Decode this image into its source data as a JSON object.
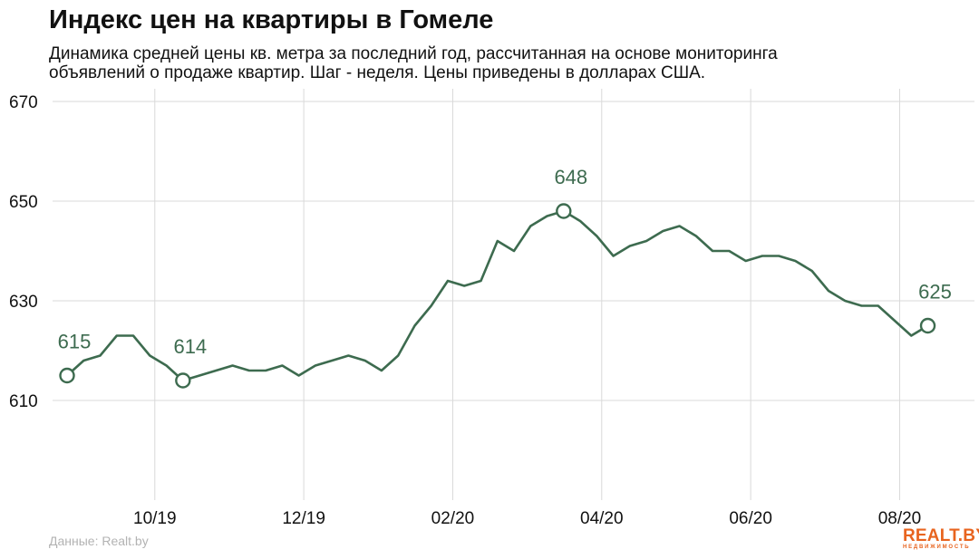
{
  "title": "Индекс цен на квартиры в Гомеле",
  "subtitle_line1": "Динамика средней цены кв. метра за последний год, рассчитанная на основе мониторинга",
  "subtitle_line2": "объявлений о продаже квартир. Шаг - неделя. Цены приведены в долларах США.",
  "source": "Данные: Realt.by",
  "logo": {
    "text": "REALT.BY",
    "sub": "НЕДВИЖИМОСТЬ"
  },
  "colors": {
    "line": "#3d6b4f",
    "grid": "#d9d9d9",
    "text": "#111111",
    "source": "#b3b3b3",
    "logo": "#e8641f"
  },
  "chart_data": {
    "type": "line",
    "title": "Индекс цен на квартиры в Гомеле",
    "xlabel": "",
    "ylabel": "",
    "ylim": [
      590,
      670
    ],
    "y_ticks": [
      610,
      630,
      650,
      670
    ],
    "x_ticks": [
      "10/19",
      "12/19",
      "02/20",
      "04/20",
      "06/20",
      "08/20"
    ],
    "x_tick_weeks": [
      5.3,
      14.3,
      23.3,
      32.3,
      41.3,
      50.3
    ],
    "grid": true,
    "series": [
      {
        "values": [
          615,
          618,
          619,
          623,
          623,
          619,
          617,
          614,
          615,
          616,
          617,
          616,
          616,
          617,
          615,
          617,
          618,
          619,
          618,
          616,
          619,
          625,
          629,
          634,
          633,
          634,
          642,
          640,
          645,
          647,
          648,
          646,
          643,
          639,
          641,
          642,
          644,
          645,
          643,
          640,
          640,
          638,
          639,
          639,
          638,
          636,
          632,
          630,
          629,
          629,
          626,
          623,
          625
        ]
      }
    ],
    "annotations": [
      {
        "week": 0,
        "value": 615,
        "label": "615"
      },
      {
        "week": 7,
        "value": 614,
        "label": "614"
      },
      {
        "week": 30,
        "value": 648,
        "label": "648"
      },
      {
        "week": 52,
        "value": 625,
        "label": "625"
      }
    ]
  }
}
